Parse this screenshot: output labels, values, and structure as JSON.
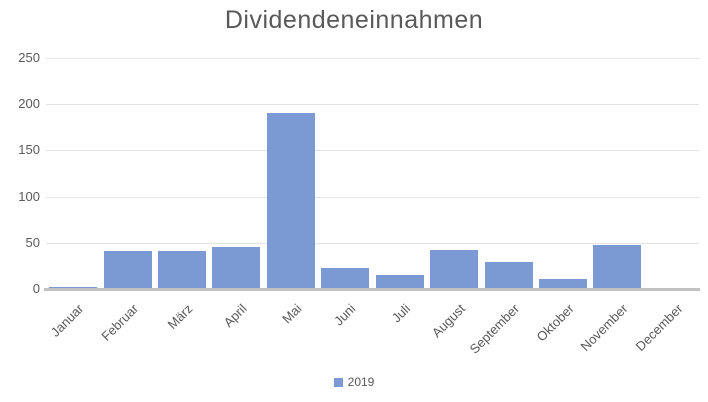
{
  "colors": {
    "bar": "#7b99d3",
    "title_text": "#595959",
    "axis_text": "#595959",
    "gridline": "#e4e4e4",
    "axis_line": "#c2c2c2",
    "background": "#ffffff"
  },
  "legend": {
    "items": [
      {
        "label": "2019",
        "color": "#7b99d3"
      }
    ]
  },
  "chart_data": {
    "type": "bar",
    "title": "Dividendeneinnahmen",
    "categories": [
      "Januar",
      "Februar",
      "März",
      "April",
      "Mai",
      "Juni",
      "Juli",
      "August",
      "September",
      "Oktober",
      "November",
      "December"
    ],
    "series": [
      {
        "name": "2019",
        "values": [
          2,
          41,
          41,
          45,
          191,
          23,
          15,
          42,
          29,
          11,
          48,
          0
        ]
      }
    ],
    "xlabel": "",
    "ylabel": "",
    "ylim": [
      0,
      250
    ],
    "yticks": [
      0,
      50,
      100,
      150,
      200,
      250
    ],
    "grid": true,
    "legend_position": "bottom",
    "x_label_rotation": -45
  }
}
